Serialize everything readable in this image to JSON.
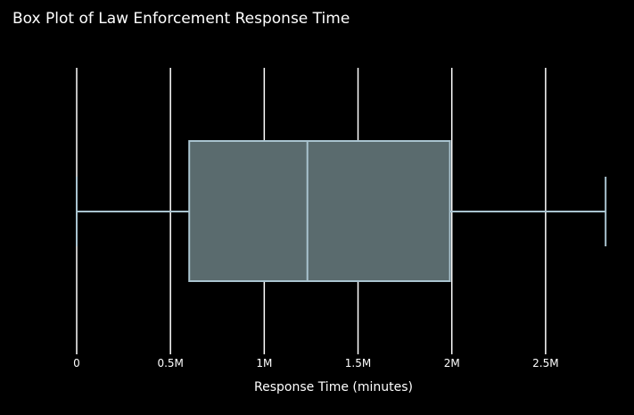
{
  "chart_data": {
    "type": "box",
    "title": "Box Plot of Law Enforcement Response Time",
    "xlabel": "Response Time (minutes)",
    "ylabel": "",
    "orientation": "horizontal",
    "xlim": [
      0,
      2900000
    ],
    "ticks": [
      {
        "value": 0,
        "label": "0"
      },
      {
        "value": 500000,
        "label": "0.5M"
      },
      {
        "value": 1000000,
        "label": "1M"
      },
      {
        "value": 1500000,
        "label": "1.5M"
      },
      {
        "value": 2000000,
        "label": "2M"
      },
      {
        "value": 2500000,
        "label": "2.5M"
      }
    ],
    "box": {
      "min": 0,
      "q1": 600000,
      "median": 1230000,
      "q3": 1990000,
      "max": 2820000
    },
    "grid": true,
    "legend": false,
    "colors": {
      "background": "#000000",
      "grid": "#ffffff",
      "text": "#ffffff",
      "box_fill": "#5a6b6e",
      "box_line": "#a9c3cf"
    }
  }
}
